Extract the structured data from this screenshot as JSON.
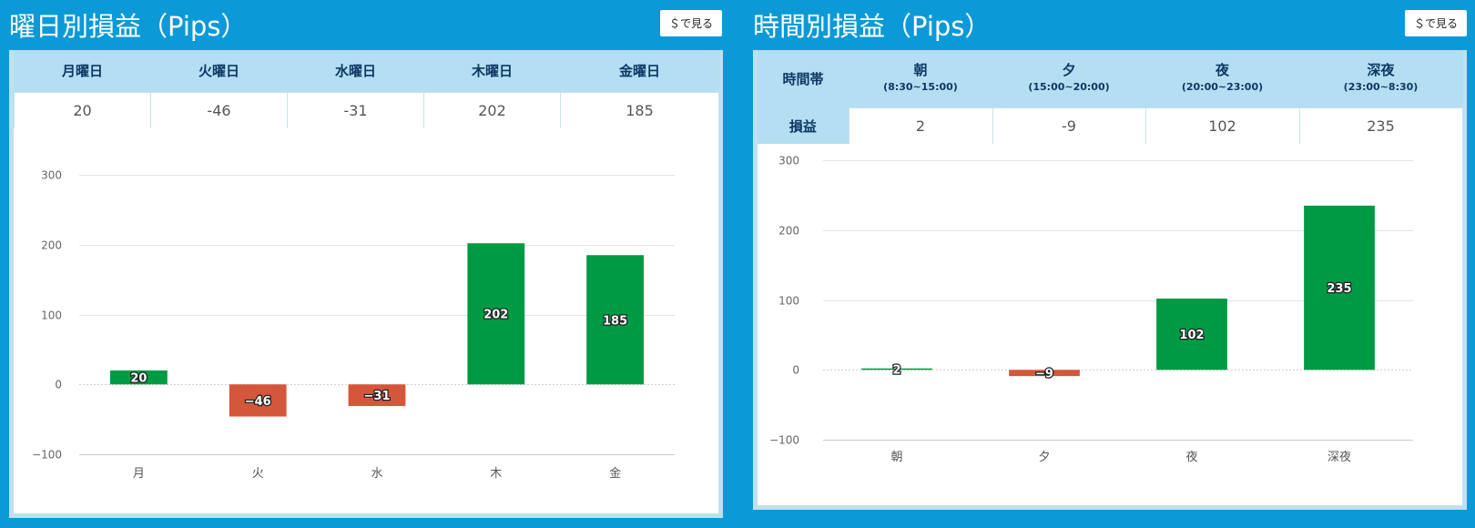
{
  "weekday": {
    "title": "曜日別損益（Pips）",
    "usd_button": "＄で見る",
    "days": [
      {
        "header": "月曜日",
        "value": "20"
      },
      {
        "header": "火曜日",
        "value": "-46"
      },
      {
        "header": "水曜日",
        "value": "-31"
      },
      {
        "header": "木曜日",
        "value": "202"
      },
      {
        "header": "金曜日",
        "value": "185"
      }
    ]
  },
  "timeslot": {
    "title": "時間別損益（Pips）",
    "usd_button": "＄で見る",
    "row_header_time": "時間帯",
    "row_header_pnl": "損益",
    "slots": [
      {
        "name": "朝",
        "range": "(8:30~15:00)",
        "value": "2"
      },
      {
        "name": "夕",
        "range": "(15:00~20:00)",
        "value": "-9"
      },
      {
        "name": "夜",
        "range": "(20:00~23:00)",
        "value": "102"
      },
      {
        "name": "深夜",
        "range": "(23:00~8:30)",
        "value": "235"
      }
    ]
  },
  "colors": {
    "positive": "#009a44",
    "negative": "#d4573b"
  },
  "chart_data": [
    {
      "type": "bar",
      "categories": [
        "月",
        "火",
        "水",
        "木",
        "金"
      ],
      "values": [
        20,
        -46,
        -31,
        202,
        185
      ],
      "ylim": [
        -100,
        300
      ],
      "yticks": [
        -100,
        0,
        100,
        200,
        300
      ],
      "tick_labels": [
        "−100",
        "0",
        "100",
        "200",
        "300"
      ],
      "data_labels": [
        "20",
        "−46",
        "−31",
        "202",
        "185"
      ],
      "grid": true
    },
    {
      "type": "bar",
      "categories": [
        "朝",
        "夕",
        "夜",
        "深夜"
      ],
      "values": [
        2,
        -9,
        102,
        235
      ],
      "ylim": [
        -100,
        300
      ],
      "yticks": [
        -100,
        0,
        100,
        200,
        300
      ],
      "tick_labels": [
        "−100",
        "0",
        "100",
        "200",
        "300"
      ],
      "data_labels": [
        "2",
        "−9",
        "102",
        "235"
      ],
      "grid": true
    }
  ]
}
